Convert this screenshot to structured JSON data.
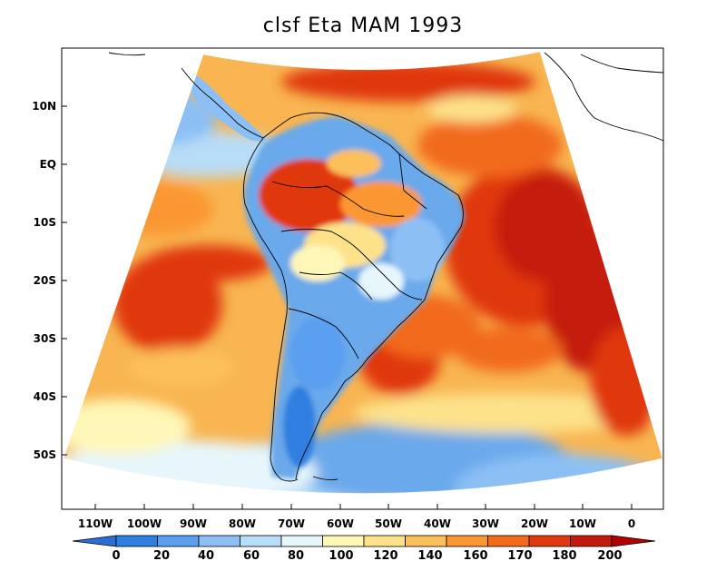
{
  "title": "clsf Eta MAM 1993",
  "y_ticks": [
    "10N",
    "EQ",
    "10S",
    "20S",
    "30S",
    "40S",
    "50S"
  ],
  "x_ticks": [
    "110W",
    "100W",
    "90W",
    "80W",
    "70W",
    "60W",
    "50W",
    "40W",
    "30W",
    "20W",
    "10W",
    "0"
  ],
  "colorbar": {
    "labels": [
      "0",
      "20",
      "40",
      "60",
      "80",
      "100",
      "120",
      "140",
      "160",
      "170",
      "180",
      "200"
    ],
    "under_color": "#2b6fd6",
    "over_color": "#b30000",
    "colors": [
      "#2f7fe0",
      "#5a9ff0",
      "#8cc0f5",
      "#b8ddf8",
      "#e6f6fb",
      "#fff7b8",
      "#fde28a",
      "#fdbf5a",
      "#fb9733",
      "#f26b1b",
      "#e0380f",
      "#c41a0c"
    ]
  },
  "colors": {
    "ocean_warm": "#f6a63f",
    "land_cool": "#6aa9eb",
    "coast": "#000000"
  }
}
